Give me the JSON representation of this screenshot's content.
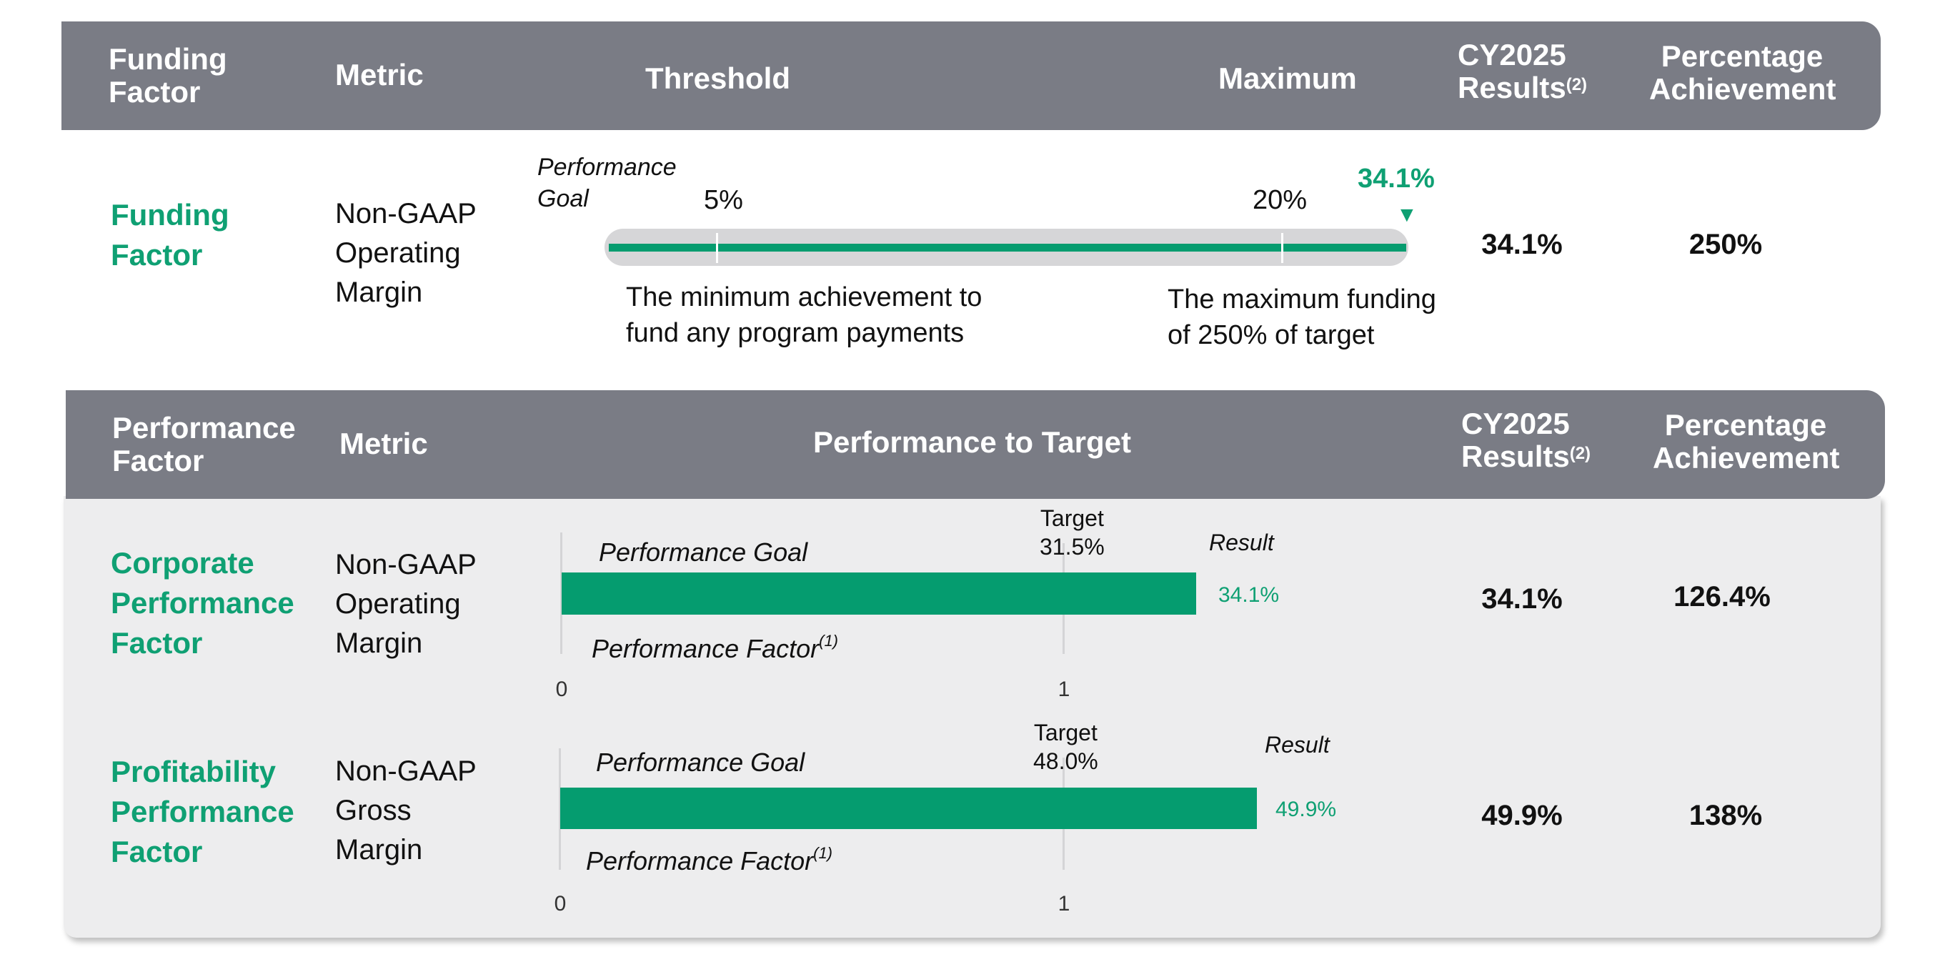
{
  "colors": {
    "header_bg": "#7a7c85",
    "accent_green": "#0fa073",
    "bar_green": "#059c6f",
    "track_gray": "#d6d6d8",
    "panel_gray": "#ededee"
  },
  "funding": {
    "headers": {
      "factor_line1": "Funding",
      "factor_line2": "Factor",
      "metric": "Metric",
      "threshold": "Threshold",
      "maximum": "Maximum",
      "results_line1": "CY2025",
      "results_line2": "Results",
      "results_sup": "(2)",
      "pct_line1": "Percentage",
      "pct_line2": "Achievement"
    },
    "factor_line1": "Funding",
    "factor_line2": "Factor",
    "metric_lines": [
      "Non-GAAP",
      "Operating",
      "Margin"
    ],
    "perf_goal_line1": "Performance",
    "perf_goal_line2": "Goal",
    "threshold_label": "5%",
    "maximum_label": "20%",
    "result_marker": "34.1%",
    "marker_glyph": "▼",
    "threshold_note_line1": "The minimum achievement to",
    "threshold_note_line2": "fund any program payments",
    "maximum_note_line1": "The maximum funding",
    "maximum_note_line2": "of 250% of target",
    "results": "34.1%",
    "percentage": "250%"
  },
  "performance": {
    "headers": {
      "factor_line1": "Performance",
      "factor_line2": "Factor",
      "metric": "Metric",
      "perf_to_target": "Performance to Target",
      "results_line1": "CY2025",
      "results_line2": "Results",
      "results_sup": "(2)",
      "pct_line1": "Percentage",
      "pct_line2": "Achievement"
    },
    "rows": [
      {
        "factor_lines": [
          "Corporate",
          "Performance",
          "Factor"
        ],
        "metric_lines": [
          "Non-GAAP",
          "Operating",
          "Margin"
        ],
        "perf_goal": "Performance  Goal",
        "perf_factor": "Performance Factor",
        "perf_factor_sup": "(1)",
        "target_label": "Target",
        "target_value": "31.5%",
        "result_label": "Result",
        "result_value": "34.1%",
        "tick_0": "0",
        "tick_1": "1",
        "results": "34.1%",
        "percentage": "126.4%"
      },
      {
        "factor_lines": [
          "Profitability",
          "Performance",
          "Factor"
        ],
        "metric_lines": [
          "Non-GAAP",
          "Gross",
          "Margin"
        ],
        "perf_goal": "Performance  Goal",
        "perf_factor": "Performance Factor",
        "perf_factor_sup": "(1)",
        "target_label": "Target",
        "target_value": "48.0%",
        "result_label": "Result",
        "result_value": "49.9%",
        "tick_0": "0",
        "tick_1": "1",
        "results": "49.9%",
        "percentage": "138%"
      }
    ]
  },
  "chart_data": [
    {
      "type": "bar",
      "title": "Funding Factor — Non-GAAP Operating Margin",
      "threshold": 5,
      "maximum": 20,
      "value": 34.1,
      "unit": "%"
    },
    {
      "type": "bar",
      "title": "Corporate Performance Factor — Non-GAAP Operating Margin",
      "x_ticks": [
        0,
        1
      ],
      "target": 31.5,
      "result": 34.1,
      "factor": 1.264,
      "unit": "%"
    },
    {
      "type": "bar",
      "title": "Profitability Performance Factor — Non-GAAP Gross Margin",
      "x_ticks": [
        0,
        1
      ],
      "target": 48.0,
      "result": 49.9,
      "factor": 1.38,
      "unit": "%"
    }
  ]
}
